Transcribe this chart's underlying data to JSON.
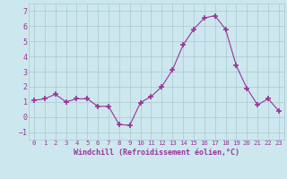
{
  "x": [
    0,
    1,
    2,
    3,
    4,
    5,
    6,
    7,
    8,
    9,
    10,
    11,
    12,
    13,
    14,
    15,
    16,
    17,
    18,
    19,
    20,
    21,
    22,
    23
  ],
  "y": [
    1.1,
    1.2,
    1.5,
    1.0,
    1.2,
    1.2,
    0.7,
    0.7,
    -0.5,
    -0.55,
    0.95,
    1.35,
    2.0,
    3.1,
    4.75,
    5.8,
    6.55,
    6.7,
    5.8,
    3.4,
    1.9,
    0.8,
    1.2,
    0.4
  ],
  "line_color": "#993399",
  "marker": "+",
  "marker_size": 4,
  "bg_color": "#cce8ee",
  "grid_color": "#b0cdd4",
  "xlabel": "Windchill (Refroidissement éolien,°C)",
  "tick_color": "#993399",
  "ylim": [
    -1.5,
    7.5
  ],
  "xlim": [
    -0.5,
    23.5
  ],
  "yticks": [
    -1,
    0,
    1,
    2,
    3,
    4,
    5,
    6,
    7
  ],
  "xticks": [
    0,
    1,
    2,
    3,
    4,
    5,
    6,
    7,
    8,
    9,
    10,
    11,
    12,
    13,
    14,
    15,
    16,
    17,
    18,
    19,
    20,
    21,
    22,
    23
  ]
}
